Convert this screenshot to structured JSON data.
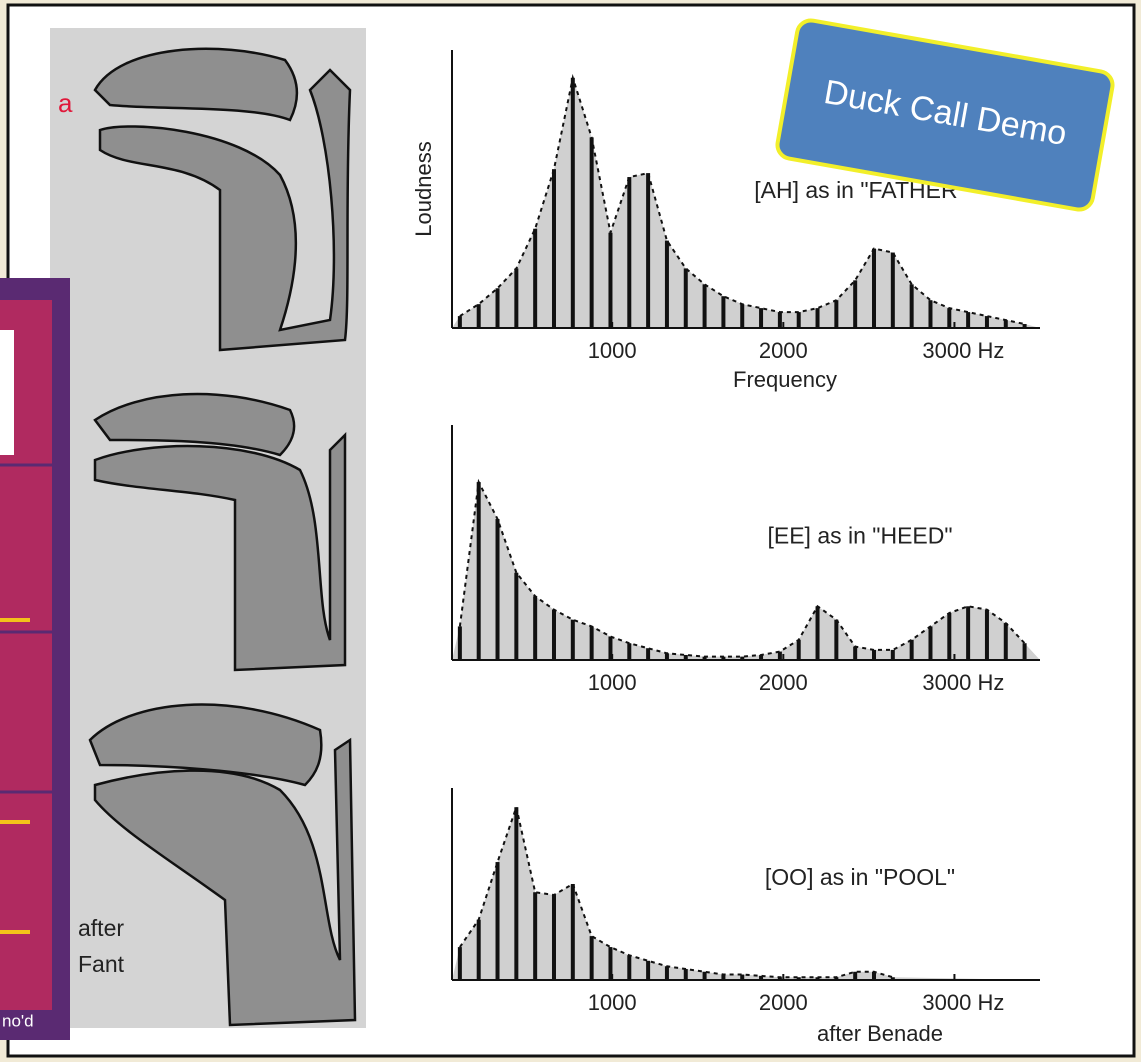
{
  "slide": {
    "vowel_label": "a",
    "credit_left": [
      "after",
      "Fant"
    ],
    "panel_text": "no'd",
    "callout": "Duck Call Demo"
  },
  "chart_data": [
    {
      "type": "bar",
      "title": "[AH] as in \"FATHER\"",
      "xlabel": "Frequency",
      "ylabel": "Loudness",
      "color": "#111111",
      "x": [
        110,
        220,
        330,
        440,
        550,
        660,
        770,
        880,
        990,
        1100,
        1210,
        1320,
        1430,
        1540,
        1650,
        1760,
        1870,
        1980,
        2090,
        2200,
        2310,
        2420,
        2530,
        2640,
        2750,
        2860,
        2970,
        3080,
        3190,
        3300,
        3410
      ],
      "values": [
        0.3,
        0.6,
        1.0,
        1.5,
        2.5,
        4.0,
        6.3,
        4.8,
        2.4,
        3.8,
        3.9,
        2.2,
        1.5,
        1.1,
        0.8,
        0.6,
        0.5,
        0.4,
        0.4,
        0.5,
        0.7,
        1.2,
        2.0,
        1.9,
        1.1,
        0.7,
        0.5,
        0.4,
        0.3,
        0.2,
        0.1
      ],
      "xlim": [
        64,
        3500
      ],
      "ylim": [
        0,
        7
      ],
      "xticks": [
        1000,
        2000,
        {
          "value": 3000,
          "label": "3000 Hz"
        }
      ]
    },
    {
      "type": "bar",
      "title": "[EE] as in \"HEED\"",
      "color": "#111111",
      "x": [
        110,
        220,
        330,
        440,
        550,
        660,
        770,
        880,
        990,
        1100,
        1210,
        1320,
        1430,
        1540,
        1650,
        1760,
        1870,
        1980,
        2090,
        2200,
        2310,
        2420,
        2530,
        2640,
        2750,
        2860,
        2970,
        3080,
        3190,
        3300,
        3410
      ],
      "values": [
        1.0,
        5.3,
        4.2,
        2.6,
        1.9,
        1.5,
        1.2,
        1.0,
        0.7,
        0.5,
        0.35,
        0.2,
        0.15,
        0.1,
        0.1,
        0.1,
        0.15,
        0.25,
        0.6,
        1.6,
        1.2,
        0.4,
        0.3,
        0.3,
        0.6,
        1.0,
        1.4,
        1.6,
        1.5,
        1.1,
        0.5
      ],
      "xlim": [
        64,
        3500
      ],
      "ylim": [
        0,
        7
      ],
      "xticks": [
        1000,
        2000,
        {
          "value": 3000,
          "label": "3000 Hz"
        }
      ]
    },
    {
      "type": "bar",
      "title": "[OO] as in \"POOL\"",
      "note": "after Benade",
      "color": "#111111",
      "x": [
        110,
        220,
        330,
        440,
        550,
        660,
        770,
        880,
        990,
        1100,
        1210,
        1320,
        1430,
        1540,
        1650,
        1760,
        1870,
        1980,
        2090,
        2200,
        2310,
        2420,
        2530,
        2640
      ],
      "values": [
        1.2,
        2.2,
        4.3,
        6.3,
        3.2,
        3.1,
        3.5,
        1.6,
        1.2,
        0.9,
        0.7,
        0.5,
        0.4,
        0.3,
        0.2,
        0.2,
        0.15,
        0.1,
        0.1,
        0.1,
        0.1,
        0.3,
        0.3,
        0.1
      ],
      "xlim": [
        64,
        3500
      ],
      "ylim": [
        0,
        7
      ],
      "xticks": [
        1000,
        2000,
        {
          "value": 3000,
          "label": "3000 Hz"
        }
      ]
    }
  ]
}
